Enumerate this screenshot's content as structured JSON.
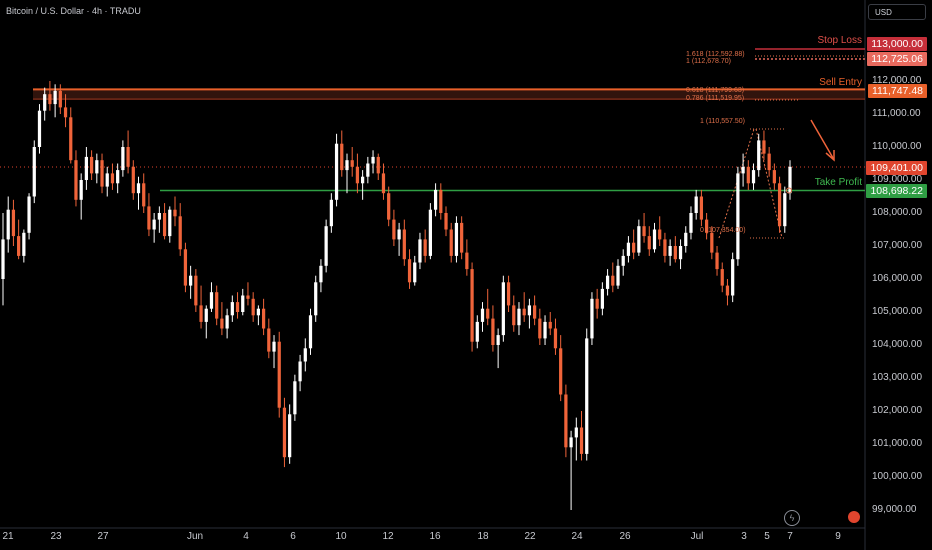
{
  "header": {
    "title": "Bitcoin / U.S. Dollar · 4h · TRADU"
  },
  "currency_button": "USD",
  "chart_data": {
    "type": "candlestick",
    "x_ticks": [
      "21",
      "23",
      "27",
      "Jun",
      "4",
      "6",
      "10",
      "12",
      "16",
      "18",
      "22",
      "24",
      "26",
      "Jul",
      "3",
      "5",
      "7",
      "9"
    ],
    "y_ticks": [
      "112,000.00",
      "111,000.00",
      "110,000.00",
      "109,000.00",
      "108,000.00",
      "107,000.00",
      "106,000.00",
      "105,000.00",
      "104,000.00",
      "103,000.00",
      "102,000.00",
      "101,000.00",
      "100,000.00",
      "99,000.00"
    ],
    "y_values": [
      112000,
      111000,
      110000,
      109000,
      108000,
      107000,
      106000,
      105000,
      104000,
      103000,
      102000,
      101000,
      100000,
      99000
    ],
    "levels": {
      "stop_loss": {
        "label": "Stop Loss",
        "price": "113,000.00",
        "value": 113000,
        "color": "#c62f3a"
      },
      "fib_target": {
        "price": "112,725.06",
        "value": 112725.06,
        "color": "#e86a5e"
      },
      "sell_entry": {
        "label": "Sell Entry",
        "price": "111,747.48",
        "value": 111747.48,
        "color": "#e8602a"
      },
      "current": {
        "price": "109,401.00",
        "value": 109401,
        "color": "#e0452e"
      },
      "take_profit": {
        "label": "Take Profit",
        "price": "108,698.22",
        "value": 108698.22,
        "color": "#2f9e44"
      }
    },
    "fib_labels": {
      "f1618": "1.618 (112,592.88)",
      "f1b": "1 (112,678.70)",
      "f0618": "0.618 (111,799.63)",
      "f0786": "0.786 (111,519.95)",
      "f1top": "1 (110,557.50)",
      "f0": "0 (107,354.00)"
    },
    "candles": [
      [
        106,
        108,
        105.2,
        107.2
      ],
      [
        107.2,
        108.5,
        106.8,
        108.1
      ],
      [
        108.1,
        108.4,
        107,
        107.3
      ],
      [
        107.3,
        107.8,
        106.6,
        106.7
      ],
      [
        106.7,
        107.5,
        106.5,
        107.4
      ],
      [
        107.4,
        108.6,
        107.2,
        108.5
      ],
      [
        108.5,
        110.2,
        108.3,
        110
      ],
      [
        110,
        111.3,
        109.8,
        111.1
      ],
      [
        111.1,
        111.8,
        110.8,
        111.6
      ],
      [
        111.6,
        112,
        111.1,
        111.3
      ],
      [
        111.3,
        111.9,
        110.9,
        111.7
      ],
      [
        111.7,
        111.9,
        111,
        111.2
      ],
      [
        111.2,
        111.6,
        110.6,
        110.9
      ],
      [
        110.9,
        111.2,
        109.5,
        109.6
      ],
      [
        109.6,
        109.9,
        108.2,
        108.4
      ],
      [
        108.4,
        109.2,
        107.8,
        109
      ],
      [
        109,
        110,
        108.7,
        109.7
      ],
      [
        109.7,
        109.9,
        109,
        109.2
      ],
      [
        109.2,
        109.8,
        108.9,
        109.6
      ],
      [
        109.6,
        109.8,
        108.6,
        108.8
      ],
      [
        108.8,
        109.4,
        108.5,
        109.2
      ],
      [
        109.2,
        109.5,
        108.7,
        108.9
      ],
      [
        108.9,
        109.5,
        108.6,
        109.3
      ],
      [
        109.3,
        110.2,
        109.1,
        110
      ],
      [
        110,
        110.5,
        109.2,
        109.4
      ],
      [
        109.4,
        109.6,
        108.4,
        108.6
      ],
      [
        108.6,
        109.1,
        108.1,
        108.9
      ],
      [
        108.9,
        109.2,
        108,
        108.2
      ],
      [
        108.2,
        108.6,
        107.3,
        107.5
      ],
      [
        107.5,
        108,
        107.1,
        107.8
      ],
      [
        107.8,
        108.2,
        107.4,
        108
      ],
      [
        108,
        108.3,
        107.2,
        107.3
      ],
      [
        107.3,
        108.2,
        107.1,
        108.1
      ],
      [
        108.1,
        108.5,
        107.6,
        107.9
      ],
      [
        107.9,
        108.3,
        106.7,
        106.9
      ],
      [
        106.9,
        107.1,
        105.6,
        105.8
      ],
      [
        105.8,
        106.4,
        105.4,
        106.1
      ],
      [
        106.1,
        106.3,
        105,
        105.2
      ],
      [
        105.2,
        105.8,
        104.5,
        104.7
      ],
      [
        104.7,
        105.2,
        104.2,
        105.1
      ],
      [
        105.1,
        105.9,
        105,
        105.6
      ],
      [
        105.6,
        105.8,
        104.6,
        104.8
      ],
      [
        104.8,
        105.3,
        104.3,
        104.5
      ],
      [
        104.5,
        105.1,
        104.2,
        104.9
      ],
      [
        104.9,
        105.5,
        104.7,
        105.3
      ],
      [
        105.3,
        105.6,
        104.8,
        105
      ],
      [
        105,
        105.7,
        104.9,
        105.5
      ],
      [
        105.5,
        105.9,
        105.2,
        105.4
      ],
      [
        105.4,
        105.6,
        104.7,
        104.9
      ],
      [
        104.9,
        105.2,
        104.6,
        105.1
      ],
      [
        105.1,
        105.4,
        104.3,
        104.5
      ],
      [
        104.5,
        104.8,
        103.6,
        103.8
      ],
      [
        103.8,
        104.3,
        103.3,
        104.1
      ],
      [
        104.1,
        104.4,
        101.8,
        102.1
      ],
      [
        102.1,
        102.4,
        100.3,
        100.6
      ],
      [
        100.6,
        102.2,
        100.4,
        101.9
      ],
      [
        101.9,
        103.1,
        101.7,
        102.9
      ],
      [
        102.9,
        103.7,
        102.6,
        103.5
      ],
      [
        103.5,
        104.2,
        103.2,
        103.9
      ],
      [
        103.9,
        105.1,
        103.7,
        104.9
      ],
      [
        104.9,
        106.1,
        104.7,
        105.9
      ],
      [
        105.9,
        106.6,
        105.6,
        106.4
      ],
      [
        106.4,
        107.8,
        106.2,
        107.6
      ],
      [
        107.6,
        108.6,
        107.4,
        108.4
      ],
      [
        108.4,
        110.4,
        108.2,
        110.1
      ],
      [
        110.1,
        110.5,
        109.1,
        109.3
      ],
      [
        109.3,
        109.8,
        108.6,
        109.6
      ],
      [
        109.6,
        110,
        109.1,
        109.4
      ],
      [
        109.4,
        109.8,
        108.6,
        108.9
      ],
      [
        108.9,
        109.3,
        108.4,
        109.1
      ],
      [
        109.1,
        109.7,
        108.9,
        109.5
      ],
      [
        109.5,
        109.9,
        109.2,
        109.7
      ],
      [
        109.7,
        109.8,
        109,
        109.2
      ],
      [
        109.2,
        109.5,
        108.4,
        108.6
      ],
      [
        108.6,
        108.8,
        107.6,
        107.8
      ],
      [
        107.8,
        108.1,
        107,
        107.2
      ],
      [
        107.2,
        107.7,
        106.7,
        107.5
      ],
      [
        107.5,
        107.8,
        106.4,
        106.6
      ],
      [
        106.6,
        106.9,
        105.7,
        105.9
      ],
      [
        105.9,
        106.7,
        105.8,
        106.5
      ],
      [
        106.5,
        107.4,
        106.3,
        107.2
      ],
      [
        107.2,
        107.5,
        106.5,
        106.7
      ],
      [
        106.7,
        108.3,
        106.6,
        108.1
      ],
      [
        108.1,
        108.9,
        107.9,
        108.7
      ],
      [
        108.7,
        108.9,
        107.8,
        108
      ],
      [
        108,
        108.2,
        107.3,
        107.5
      ],
      [
        107.5,
        107.7,
        106.5,
        106.7
      ],
      [
        106.7,
        107.9,
        106.5,
        107.7
      ],
      [
        107.7,
        107.9,
        106.6,
        106.8
      ],
      [
        106.8,
        107.2,
        106.1,
        106.3
      ],
      [
        106.3,
        106.5,
        103.8,
        104.1
      ],
      [
        104.1,
        104.9,
        103.9,
        104.7
      ],
      [
        104.7,
        105.3,
        104.4,
        105.1
      ],
      [
        105.1,
        105.7,
        104.6,
        104.8
      ],
      [
        104.8,
        105.2,
        103.8,
        104
      ],
      [
        104,
        104.5,
        103.3,
        104.3
      ],
      [
        104.3,
        106.1,
        104.1,
        105.9
      ],
      [
        105.9,
        106.1,
        105,
        105.2
      ],
      [
        105.2,
        105.5,
        104.4,
        104.6
      ],
      [
        104.6,
        105.3,
        104.3,
        105.1
      ],
      [
        105.1,
        105.6,
        104.7,
        104.9
      ],
      [
        104.9,
        105.4,
        104.5,
        105.2
      ],
      [
        105.2,
        105.5,
        104.6,
        104.8
      ],
      [
        104.8,
        105.1,
        104,
        104.2
      ],
      [
        104.2,
        104.9,
        104,
        104.7
      ],
      [
        104.7,
        105,
        104.3,
        104.5
      ],
      [
        104.5,
        104.8,
        103.7,
        103.9
      ],
      [
        103.9,
        104.3,
        102.3,
        102.5
      ],
      [
        102.5,
        102.8,
        100.6,
        100.9
      ],
      [
        100.9,
        101.4,
        99,
        101.2
      ],
      [
        101.2,
        101.8,
        100.5,
        101.5
      ],
      [
        101.5,
        102,
        100.5,
        100.7
      ],
      [
        100.7,
        104.5,
        100.5,
        104.2
      ],
      [
        104.2,
        105.6,
        104,
        105.4
      ],
      [
        105.4,
        105.7,
        104.8,
        105.1
      ],
      [
        105.1,
        105.9,
        104.9,
        105.7
      ],
      [
        105.7,
        106.3,
        105.5,
        106.1
      ],
      [
        106.1,
        106.5,
        105.6,
        105.8
      ],
      [
        105.8,
        106.6,
        105.7,
        106.4
      ],
      [
        106.4,
        106.9,
        106.1,
        106.7
      ],
      [
        106.7,
        107.3,
        106.5,
        107.1
      ],
      [
        107.1,
        107.5,
        106.6,
        106.8
      ],
      [
        106.8,
        107.8,
        106.7,
        107.6
      ],
      [
        107.6,
        108,
        107.1,
        107.3
      ],
      [
        107.3,
        107.6,
        106.7,
        106.9
      ],
      [
        106.9,
        107.7,
        106.8,
        107.5
      ],
      [
        107.5,
        107.9,
        107,
        107.2
      ],
      [
        107.2,
        107.4,
        106.5,
        106.7
      ],
      [
        106.7,
        107.2,
        106.4,
        107
      ],
      [
        107,
        107.3,
        106.5,
        106.6
      ],
      [
        106.6,
        107.2,
        106.3,
        107
      ],
      [
        107,
        107.6,
        106.8,
        107.4
      ],
      [
        107.4,
        108.2,
        107.2,
        108
      ],
      [
        108,
        108.7,
        107.8,
        108.5
      ],
      [
        108.5,
        108.7,
        107.6,
        107.8
      ],
      [
        107.8,
        108,
        107.2,
        107.4
      ],
      [
        107.4,
        107.6,
        106.6,
        106.8
      ],
      [
        106.8,
        107,
        106.1,
        106.3
      ],
      [
        106.3,
        106.5,
        105.6,
        105.8
      ],
      [
        105.8,
        106,
        105.2,
        105.5
      ],
      [
        105.5,
        106.8,
        105.3,
        106.6
      ],
      [
        106.6,
        109.4,
        106.4,
        109.2
      ],
      [
        109.2,
        109.8,
        108.8,
        109.4
      ],
      [
        109.4,
        109.6,
        108.7,
        108.9
      ],
      [
        108.9,
        109.5,
        108.7,
        109.3
      ],
      [
        109.3,
        110.4,
        109.1,
        110.2
      ],
      [
        110.2,
        110.5,
        109.6,
        109.8
      ],
      [
        109.8,
        110,
        109.1,
        109.3
      ],
      [
        109.3,
        109.5,
        108.7,
        108.9
      ],
      [
        108.9,
        109.1,
        107.4,
        107.6
      ],
      [
        107.6,
        108.8,
        107.4,
        108.6
      ],
      [
        108.6,
        109.6,
        108.4,
        109.4
      ]
    ]
  }
}
